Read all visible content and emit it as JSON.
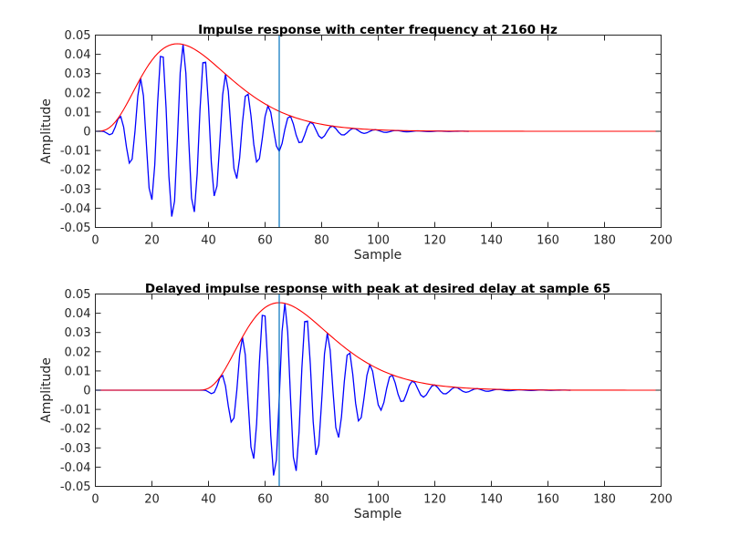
{
  "chart_data": [
    {
      "type": "line",
      "title": "Impulse response with center frequency at 2160 Hz",
      "xlabel": "Sample",
      "ylabel": "Amplitude",
      "xlim": [
        0,
        200
      ],
      "ylim": [
        -0.05,
        0.05
      ],
      "xticks": [
        "0",
        "20",
        "40",
        "60",
        "80",
        "100",
        "120",
        "140",
        "160",
        "180",
        "200"
      ],
      "yticks": [
        "0.05",
        "0.04",
        "0.03",
        "0.02",
        "0.01",
        "0",
        "-0.01",
        "-0.02",
        "-0.03",
        "-0.04",
        "-0.05"
      ],
      "grid": false,
      "marker_line": {
        "x": 65,
        "color": "#0072BD"
      },
      "series": [
        {
          "name": "impulse response",
          "color": "#0000FF",
          "kind": "oscillation",
          "start_sample": 0,
          "length_samples": 132,
          "period_samples": 7.55,
          "first_positive_peak_sample": 31,
          "envelope_peak_sample": 29,
          "envelope_peak_value": 0.0455,
          "envelope_shape_order": 3.4,
          "extrema": [
            {
              "x": 8.5,
              "y": 0.011
            },
            {
              "x": 12,
              "y": -0.021
            },
            {
              "x": 16,
              "y": 0.03
            },
            {
              "x": 19.5,
              "y": -0.038
            },
            {
              "x": 23.5,
              "y": 0.041
            },
            {
              "x": 27,
              "y": -0.043
            },
            {
              "x": 31,
              "y": 0.045
            },
            {
              "x": 35,
              "y": -0.043
            },
            {
              "x": 38.7,
              "y": 0.037
            },
            {
              "x": 42.3,
              "y": -0.034
            },
            {
              "x": 46,
              "y": 0.029
            },
            {
              "x": 50,
              "y": -0.027
            },
            {
              "x": 54,
              "y": 0.021
            },
            {
              "x": 57.5,
              "y": -0.018
            },
            {
              "x": 61.5,
              "y": 0.016
            },
            {
              "x": 65,
              "y": -0.012
            },
            {
              "x": 69,
              "y": 0.011
            }
          ]
        },
        {
          "name": "envelope",
          "color": "#FF0000",
          "kind": "envelope",
          "start_sample": 0,
          "end_sample": 200,
          "peak_sample": 29,
          "peak_value": 0.0455,
          "shape_order": 3.4
        }
      ]
    },
    {
      "type": "line",
      "title": "Delayed impulse response with peak at desired delay at sample 65",
      "xlabel": "Sample",
      "ylabel": "Amplitude",
      "xlim": [
        0,
        200
      ],
      "ylim": [
        -0.05,
        0.05
      ],
      "xticks": [
        "0",
        "20",
        "40",
        "60",
        "80",
        "100",
        "120",
        "140",
        "160",
        "180",
        "200"
      ],
      "yticks": [
        "0.05",
        "0.04",
        "0.03",
        "0.02",
        "0.01",
        "0",
        "-0.01",
        "-0.02",
        "-0.03",
        "-0.04",
        "-0.05"
      ],
      "grid": false,
      "marker_line": {
        "x": 65,
        "color": "#0072BD"
      },
      "series": [
        {
          "name": "delayed impulse response",
          "color": "#0000FF",
          "kind": "oscillation",
          "start_sample": 36,
          "length_samples": 132,
          "period_samples": 7.55,
          "first_positive_peak_sample": 67,
          "envelope_peak_sample": 65,
          "envelope_peak_value": 0.0455,
          "envelope_shape_order": 3.4,
          "extrema": [
            {
              "x": 44.5,
              "y": 0.007
            },
            {
              "x": 48,
              "y": -0.015
            },
            {
              "x": 52,
              "y": 0.026
            },
            {
              "x": 55.5,
              "y": -0.034
            },
            {
              "x": 59.5,
              "y": 0.038
            },
            {
              "x": 63,
              "y": -0.043
            },
            {
              "x": 67,
              "y": 0.045
            },
            {
              "x": 70.5,
              "y": -0.043
            },
            {
              "x": 74.5,
              "y": 0.04
            },
            {
              "x": 78,
              "y": -0.038
            },
            {
              "x": 82,
              "y": 0.031
            },
            {
              "x": 86,
              "y": -0.029
            },
            {
              "x": 90,
              "y": 0.025
            },
            {
              "x": 93.5,
              "y": -0.021
            },
            {
              "x": 97.5,
              "y": 0.017
            }
          ]
        },
        {
          "name": "delayed envelope",
          "color": "#FF0000",
          "kind": "envelope",
          "start_sample": 36,
          "end_sample": 200,
          "peak_sample": 65,
          "peak_value": 0.0455,
          "shape_order": 3.4
        }
      ]
    }
  ]
}
